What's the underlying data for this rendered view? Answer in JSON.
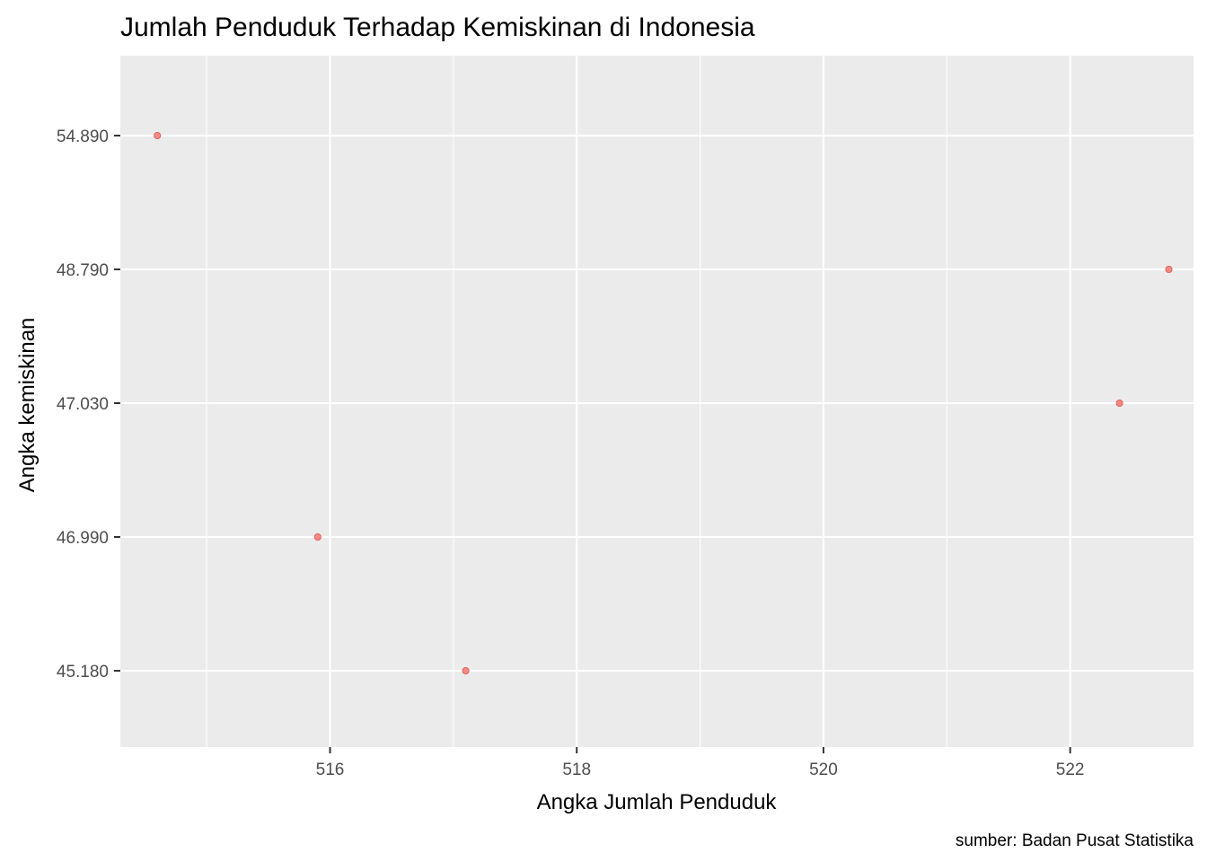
{
  "chart_data": {
    "type": "scatter",
    "title": "Jumlah Penduduk Terhadap Kemiskinan di Indonesia",
    "xlabel": "Angka Jumlah Penduduk",
    "ylabel": "Angka kemiskinan",
    "caption": "sumber: Badan Pusat Statistika",
    "x_ticks": [
      "516",
      "518",
      "520",
      "522"
    ],
    "x_tick_values": [
      516,
      518,
      520,
      522
    ],
    "y_ticks": [
      "45.180",
      "46.990",
      "47.030",
      "48.790",
      "54.890"
    ],
    "xlim": [
      514.3,
      523.0
    ],
    "grid": true,
    "point_color": "#F8766D",
    "panel_color": "#EBEBEB",
    "points": [
      {
        "x": 514.6,
        "y": "54.890"
      },
      {
        "x": 515.9,
        "y": "46.990"
      },
      {
        "x": 517.1,
        "y": "45.180"
      },
      {
        "x": 522.4,
        "y": "47.030"
      },
      {
        "x": 522.8,
        "y": "48.790"
      }
    ]
  }
}
